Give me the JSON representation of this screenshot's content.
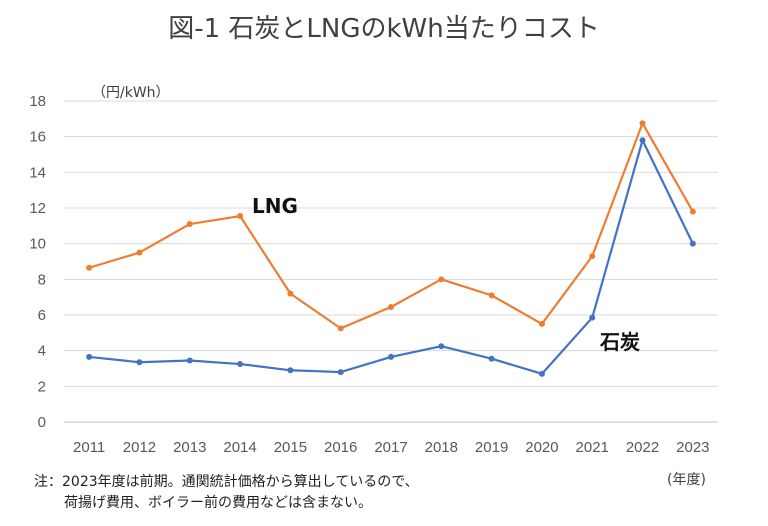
{
  "chart_data": {
    "type": "line",
    "title": "図-1 石炭とLNGのkWh当たりコスト",
    "y_unit": "（円/kWh）",
    "x_unit": "(年度)",
    "categories": [
      "2011",
      "2012",
      "2013",
      "2014",
      "2015",
      "2016",
      "2017",
      "2018",
      "2019",
      "2020",
      "2021",
      "2022",
      "2023"
    ],
    "ylim": [
      0,
      18
    ],
    "yticks": [
      0,
      2,
      4,
      6,
      8,
      10,
      12,
      14,
      16,
      18
    ],
    "grid": true,
    "series": [
      {
        "name": "LNG",
        "color": "#ED7D31",
        "values": [
          8.65,
          9.5,
          11.1,
          11.55,
          7.2,
          5.25,
          6.45,
          8.0,
          7.1,
          5.5,
          9.3,
          16.75,
          11.8
        ]
      },
      {
        "name": "石炭",
        "color": "#4472C4",
        "values": [
          3.65,
          3.35,
          3.45,
          3.25,
          2.9,
          2.8,
          3.65,
          4.25,
          3.55,
          2.7,
          5.85,
          15.8,
          10.0
        ]
      }
    ]
  },
  "footnote": {
    "line1": "注：2023年度は前期。通関統計価格から算出しているので、",
    "line2": "荷揚げ費用、ボイラー前の費用などは含まない。"
  }
}
